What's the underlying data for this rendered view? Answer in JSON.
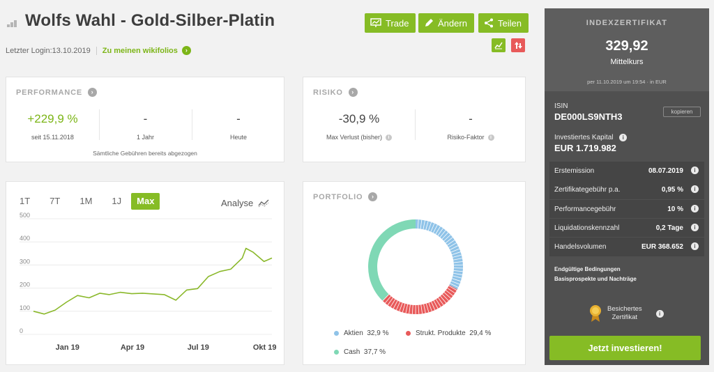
{
  "header": {
    "title": "Wolfs Wahl - Gold-Silber-Platin",
    "last_login": "Letzter Login:13.10.2019",
    "wikifolio_link": "Zu meinen wikifolios",
    "buttons": {
      "trade": "Trade",
      "edit": "Ändern",
      "share": "Teilen"
    }
  },
  "performance": {
    "title": "PERFORMANCE",
    "metrics": [
      {
        "value": "+229,9 %",
        "label": "seit 15.11.2018"
      },
      {
        "value": "-",
        "label": "1 Jahr"
      },
      {
        "value": "-",
        "label": "Heute"
      }
    ],
    "footnote": "Sämtliche Gebühren bereits abgezogen"
  },
  "risk": {
    "title": "RISIKO",
    "metrics": [
      {
        "value": "-30,9 %",
        "label": "Max Verlust (bisher)"
      },
      {
        "value": "-",
        "label": "Risiko-Faktor"
      }
    ]
  },
  "chart": {
    "tabs": [
      "1T",
      "7T",
      "1M",
      "1J",
      "Max"
    ],
    "active_tab": "Max",
    "analyse_label": "Analyse"
  },
  "chart_data": {
    "type": "line",
    "y_ticks": [
      "500",
      "400",
      "300",
      "200",
      "100",
      "0"
    ],
    "ylim": [
      0,
      500
    ],
    "x_ticks": [
      "Jan 19",
      "Apr 19",
      "Jul 19",
      "Okt 19"
    ],
    "grid": true,
    "line_color": "#8ab82a",
    "series": [
      {
        "x": [
          "2018-11-15",
          "2018-11-30",
          "2018-12-15",
          "2018-12-31",
          "2019-01-15",
          "2019-01-31",
          "2019-02-15",
          "2019-02-28",
          "2019-03-15",
          "2019-03-31",
          "2019-04-15",
          "2019-04-30",
          "2019-05-15",
          "2019-05-31",
          "2019-06-15",
          "2019-06-30",
          "2019-07-15",
          "2019-07-31",
          "2019-08-15",
          "2019-08-31",
          "2019-09-05",
          "2019-09-15",
          "2019-09-30",
          "2019-10-11"
        ],
        "y": [
          100,
          88,
          105,
          140,
          168,
          158,
          178,
          172,
          182,
          176,
          178,
          175,
          172,
          148,
          192,
          198,
          250,
          272,
          282,
          330,
          372,
          355,
          315,
          330
        ]
      }
    ]
  },
  "portfolio": {
    "title": "PORTFOLIO",
    "slices": [
      {
        "label": "Aktien",
        "value": 32.9,
        "display": "32,9 %",
        "color": "#8fc3e8"
      },
      {
        "label": "Strukt. Produkte",
        "value": 29.4,
        "display": "29,4 %",
        "color": "#e85a5a"
      },
      {
        "label": "Cash",
        "value": 37.7,
        "display": "37,7 %",
        "color": "#7fd8b5"
      }
    ]
  },
  "sidebar": {
    "kicker": "INDEXZERTIFIKAT",
    "price": "329,92",
    "price_label": "Mittelkurs",
    "timestamp": "per 11.10.2019 um 19:54 · in EUR",
    "isin_label": "ISIN",
    "isin": "DE000LS9NTH3",
    "copy_label": "kopieren",
    "capital_label": "Investiertes Kapital",
    "capital": "EUR 1.719.982",
    "rows": [
      {
        "key": "Erstemission",
        "value": "08.07.2019"
      },
      {
        "key": "Zertifikategebühr p.a.",
        "value": "0,95 %"
      },
      {
        "key": "Performancegebühr",
        "value": "10 %"
      },
      {
        "key": "Liquidationskennzahl",
        "value": "0,2 Tage"
      },
      {
        "key": "Handelsvolumen",
        "value": "EUR 368.652"
      }
    ],
    "links": [
      "Endgültige Bedingungen",
      "Basisprospekte und Nachträge"
    ],
    "seal_line1": "Besichertes",
    "seal_line2": "Zertifikat",
    "cta": "Jetzt investieren!"
  }
}
